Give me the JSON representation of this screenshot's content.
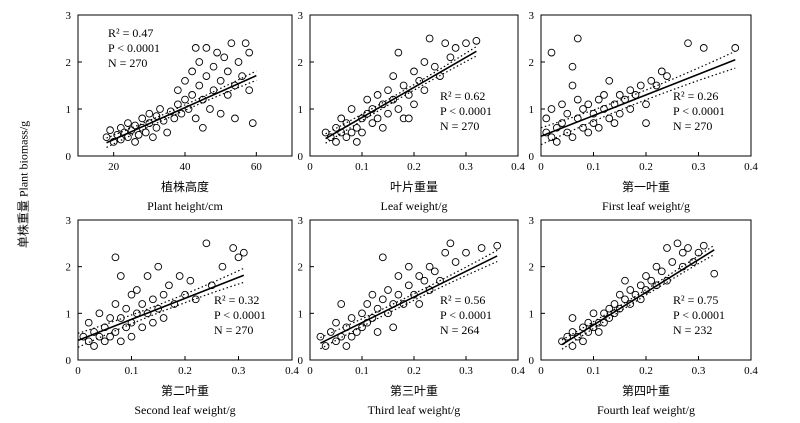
{
  "figure": {
    "ylabel": "单株重量 Plant biomass/g"
  },
  "chart_data": [
    {
      "type": "scatter",
      "panel": "a",
      "xlabel_cn": "植株高度",
      "xlabel_en": "Plant height/cm",
      "xlim": [
        10,
        70
      ],
      "ylim": [
        0,
        3
      ],
      "xticks": [
        20,
        40,
        60
      ],
      "xtick_labels": [
        "20",
        "40",
        "60"
      ],
      "yticks": [
        0,
        1,
        2,
        3
      ],
      "ytick_labels": [
        "0",
        "1",
        "2",
        "3"
      ],
      "stats": [
        "R² = 0.47",
        "P < 0.0001",
        "N = 270"
      ],
      "stats_position": "top-left",
      "fit": {
        "slope": 0.034,
        "intercept": -0.33,
        "x_range": [
          18,
          60
        ],
        "ci": 0.1
      },
      "points": [
        [
          18,
          0.4
        ],
        [
          19,
          0.55
        ],
        [
          20,
          0.3
        ],
        [
          21,
          0.45
        ],
        [
          22,
          0.6
        ],
        [
          22,
          0.35
        ],
        [
          23,
          0.5
        ],
        [
          24,
          0.7
        ],
        [
          24,
          0.4
        ],
        [
          25,
          0.55
        ],
        [
          26,
          0.65
        ],
        [
          26,
          0.3
        ],
        [
          27,
          0.45
        ],
        [
          28,
          0.8
        ],
        [
          28,
          0.6
        ],
        [
          29,
          0.5
        ],
        [
          30,
          0.9
        ],
        [
          30,
          0.7
        ],
        [
          31,
          0.4
        ],
        [
          32,
          0.85
        ],
        [
          32,
          0.6
        ],
        [
          33,
          1.0
        ],
        [
          34,
          0.75
        ],
        [
          35,
          0.5
        ],
        [
          36,
          0.95
        ],
        [
          37,
          0.8
        ],
        [
          38,
          1.1
        ],
        [
          38,
          1.4
        ],
        [
          39,
          0.9
        ],
        [
          40,
          1.2
        ],
        [
          40,
          1.6
        ],
        [
          41,
          1.0
        ],
        [
          42,
          1.3
        ],
        [
          42,
          1.8
        ],
        [
          43,
          0.8
        ],
        [
          44,
          1.5
        ],
        [
          44,
          2.0
        ],
        [
          45,
          1.2
        ],
        [
          46,
          1.7
        ],
        [
          46,
          2.3
        ],
        [
          47,
          1.0
        ],
        [
          48,
          1.4
        ],
        [
          48,
          1.9
        ],
        [
          49,
          2.2
        ],
        [
          50,
          1.6
        ],
        [
          50,
          0.9
        ],
        [
          51,
          2.1
        ],
        [
          52,
          1.3
        ],
        [
          52,
          1.8
        ],
        [
          53,
          2.4
        ],
        [
          54,
          1.5
        ],
        [
          54,
          0.8
        ],
        [
          55,
          2.0
        ],
        [
          56,
          1.7
        ],
        [
          57,
          2.4
        ],
        [
          58,
          1.4
        ],
        [
          59,
          0.7
        ],
        [
          58,
          2.2
        ],
        [
          45,
          0.6
        ],
        [
          43,
          2.3
        ]
      ]
    },
    {
      "type": "scatter",
      "panel": "b",
      "xlabel_cn": "叶片重量",
      "xlabel_en": "Leaf weight/g",
      "xlim": [
        0,
        0.4
      ],
      "ylim": [
        0,
        3
      ],
      "xticks": [
        0,
        0.1,
        0.2,
        0.3,
        0.4
      ],
      "xtick_labels": [
        "0",
        "0.1",
        "0.2",
        "0.3",
        "0.4"
      ],
      "yticks": [
        0,
        1,
        2,
        3
      ],
      "ytick_labels": [
        "0",
        "1",
        "2",
        "3"
      ],
      "stats": [
        "R² = 0.62",
        "P < 0.0001",
        "N = 270"
      ],
      "stats_position": "right",
      "fit": {
        "slope": 6.4,
        "intercept": 0.18,
        "x_range": [
          0.03,
          0.32
        ],
        "ci": 0.1
      },
      "points": [
        [
          0.03,
          0.5
        ],
        [
          0.04,
          0.4
        ],
        [
          0.05,
          0.6
        ],
        [
          0.05,
          0.3
        ],
        [
          0.06,
          0.5
        ],
        [
          0.06,
          0.8
        ],
        [
          0.07,
          0.4
        ],
        [
          0.07,
          0.7
        ],
        [
          0.08,
          0.5
        ],
        [
          0.08,
          1.0
        ],
        [
          0.09,
          0.6
        ],
        [
          0.09,
          0.3
        ],
        [
          0.1,
          0.8
        ],
        [
          0.1,
          0.5
        ],
        [
          0.11,
          0.9
        ],
        [
          0.11,
          1.2
        ],
        [
          0.12,
          0.7
        ],
        [
          0.12,
          1.0
        ],
        [
          0.13,
          0.8
        ],
        [
          0.13,
          1.3
        ],
        [
          0.14,
          1.1
        ],
        [
          0.14,
          0.6
        ],
        [
          0.15,
          1.4
        ],
        [
          0.15,
          0.9
        ],
        [
          0.16,
          1.2
        ],
        [
          0.16,
          1.7
        ],
        [
          0.17,
          1.0
        ],
        [
          0.17,
          2.2
        ],
        [
          0.18,
          1.5
        ],
        [
          0.18,
          0.8
        ],
        [
          0.19,
          1.3
        ],
        [
          0.2,
          1.8
        ],
        [
          0.2,
          1.1
        ],
        [
          0.21,
          1.6
        ],
        [
          0.22,
          2.0
        ],
        [
          0.22,
          1.4
        ],
        [
          0.23,
          2.5
        ],
        [
          0.24,
          1.9
        ],
        [
          0.25,
          1.7
        ],
        [
          0.26,
          2.4
        ],
        [
          0.27,
          2.1
        ],
        [
          0.28,
          2.3
        ],
        [
          0.3,
          2.4
        ],
        [
          0.32,
          2.45
        ],
        [
          0.19,
          0.8
        ]
      ]
    },
    {
      "type": "scatter",
      "panel": "c",
      "xlabel_cn": "第一叶重",
      "xlabel_en": "First leaf weight/g",
      "xlim": [
        0,
        0.4
      ],
      "ylim": [
        0,
        3
      ],
      "xticks": [
        0,
        0.1,
        0.2,
        0.3,
        0.4
      ],
      "xtick_labels": [
        "0",
        "0.1",
        "0.2",
        "0.3",
        "0.4"
      ],
      "yticks": [
        0,
        1,
        2,
        3
      ],
      "ytick_labels": [
        "0",
        "1",
        "2",
        "3"
      ],
      "stats": [
        "R² = 0.26",
        "P < 0.0001",
        "N = 270"
      ],
      "stats_position": "right",
      "fit": {
        "slope": 4.4,
        "intercept": 0.42,
        "x_range": [
          0.0,
          0.37
        ],
        "ci": 0.18
      },
      "points": [
        [
          0.01,
          0.5
        ],
        [
          0.01,
          0.8
        ],
        [
          0.02,
          0.4
        ],
        [
          0.02,
          1.0
        ],
        [
          0.03,
          0.6
        ],
        [
          0.03,
          0.3
        ],
        [
          0.04,
          0.7
        ],
        [
          0.04,
          1.1
        ],
        [
          0.05,
          0.5
        ],
        [
          0.05,
          0.9
        ],
        [
          0.06,
          1.5
        ],
        [
          0.06,
          1.9
        ],
        [
          0.06,
          0.4
        ],
        [
          0.07,
          2.5
        ],
        [
          0.07,
          0.8
        ],
        [
          0.07,
          1.2
        ],
        [
          0.08,
          0.6
        ],
        [
          0.08,
          1.0
        ],
        [
          0.09,
          0.5
        ],
        [
          0.09,
          1.1
        ],
        [
          0.1,
          0.7
        ],
        [
          0.1,
          0.9
        ],
        [
          0.11,
          1.2
        ],
        [
          0.11,
          0.6
        ],
        [
          0.12,
          1.0
        ],
        [
          0.12,
          1.3
        ],
        [
          0.13,
          0.8
        ],
        [
          0.13,
          1.6
        ],
        [
          0.14,
          1.1
        ],
        [
          0.14,
          0.7
        ],
        [
          0.15,
          1.3
        ],
        [
          0.15,
          0.9
        ],
        [
          0.16,
          1.2
        ],
        [
          0.17,
          1.0
        ],
        [
          0.17,
          1.4
        ],
        [
          0.18,
          1.3
        ],
        [
          0.19,
          1.5
        ],
        [
          0.2,
          1.1
        ],
        [
          0.2,
          0.7
        ],
        [
          0.21,
          1.6
        ],
        [
          0.22,
          1.5
        ],
        [
          0.23,
          1.8
        ],
        [
          0.24,
          1.7
        ],
        [
          0.28,
          2.4
        ],
        [
          0.31,
          2.3
        ],
        [
          0.37,
          2.3
        ],
        [
          0.02,
          2.2
        ]
      ]
    },
    {
      "type": "scatter",
      "panel": "d",
      "xlabel_cn": "第二叶重",
      "xlabel_en": "Second leaf weight/g",
      "xlim": [
        0,
        0.4
      ],
      "ylim": [
        0,
        3
      ],
      "xticks": [
        0,
        0.1,
        0.2,
        0.3,
        0.4
      ],
      "xtick_labels": [
        "0",
        "0.1",
        "0.2",
        "0.3",
        "0.4"
      ],
      "yticks": [
        0,
        1,
        2,
        3
      ],
      "ytick_labels": [
        "0",
        "1",
        "2",
        "3"
      ],
      "stats": [
        "R² = 0.32",
        "P < 0.0001",
        "N = 270"
      ],
      "stats_position": "right",
      "fit": {
        "slope": 4.5,
        "intercept": 0.42,
        "x_range": [
          0.0,
          0.31
        ],
        "ci": 0.15
      },
      "points": [
        [
          0.01,
          0.5
        ],
        [
          0.02,
          0.4
        ],
        [
          0.02,
          0.8
        ],
        [
          0.03,
          0.3
        ],
        [
          0.03,
          0.6
        ],
        [
          0.04,
          0.5
        ],
        [
          0.04,
          1.0
        ],
        [
          0.05,
          0.7
        ],
        [
          0.05,
          0.4
        ],
        [
          0.06,
          0.9
        ],
        [
          0.06,
          0.5
        ],
        [
          0.07,
          2.2
        ],
        [
          0.07,
          1.2
        ],
        [
          0.07,
          0.6
        ],
        [
          0.08,
          1.8
        ],
        [
          0.08,
          0.9
        ],
        [
          0.08,
          0.4
        ],
        [
          0.09,
          1.1
        ],
        [
          0.09,
          0.7
        ],
        [
          0.1,
          1.4
        ],
        [
          0.1,
          0.8
        ],
        [
          0.1,
          0.5
        ],
        [
          0.11,
          1.5
        ],
        [
          0.11,
          1.0
        ],
        [
          0.12,
          1.2
        ],
        [
          0.12,
          0.7
        ],
        [
          0.13,
          1.8
        ],
        [
          0.13,
          1.0
        ],
        [
          0.14,
          1.3
        ],
        [
          0.14,
          0.8
        ],
        [
          0.15,
          2.0
        ],
        [
          0.15,
          1.1
        ],
        [
          0.16,
          1.4
        ],
        [
          0.16,
          0.9
        ],
        [
          0.17,
          1.6
        ],
        [
          0.18,
          1.2
        ],
        [
          0.19,
          1.8
        ],
        [
          0.2,
          1.4
        ],
        [
          0.21,
          1.7
        ],
        [
          0.22,
          1.3
        ],
        [
          0.24,
          2.5
        ],
        [
          0.25,
          1.6
        ],
        [
          0.27,
          2.0
        ],
        [
          0.29,
          2.4
        ],
        [
          0.3,
          2.2
        ],
        [
          0.31,
          2.3
        ]
      ]
    },
    {
      "type": "scatter",
      "panel": "e",
      "xlabel_cn": "第三叶重",
      "xlabel_en": "Third leaf weight/g",
      "xlim": [
        0,
        0.4
      ],
      "ylim": [
        0,
        3
      ],
      "xticks": [
        0,
        0.1,
        0.2,
        0.3,
        0.4
      ],
      "xtick_labels": [
        "0",
        "0.1",
        "0.2",
        "0.3",
        "0.4"
      ],
      "yticks": [
        0,
        1,
        2,
        3
      ],
      "ytick_labels": [
        "0",
        "1",
        "2",
        "3"
      ],
      "stats": [
        "R² = 0.56",
        "P < 0.0001",
        "N = 264"
      ],
      "stats_position": "right",
      "fit": {
        "slope": 5.5,
        "intercept": 0.25,
        "x_range": [
          0.02,
          0.36
        ],
        "ci": 0.12
      },
      "points": [
        [
          0.02,
          0.5
        ],
        [
          0.03,
          0.3
        ],
        [
          0.04,
          0.6
        ],
        [
          0.05,
          0.4
        ],
        [
          0.05,
          0.8
        ],
        [
          0.06,
          0.5
        ],
        [
          0.07,
          0.7
        ],
        [
          0.07,
          0.3
        ],
        [
          0.08,
          0.9
        ],
        [
          0.08,
          0.5
        ],
        [
          0.09,
          0.6
        ],
        [
          0.1,
          1.0
        ],
        [
          0.1,
          0.7
        ],
        [
          0.11,
          1.2
        ],
        [
          0.11,
          0.8
        ],
        [
          0.12,
          0.9
        ],
        [
          0.12,
          1.4
        ],
        [
          0.13,
          1.1
        ],
        [
          0.13,
          0.6
        ],
        [
          0.14,
          1.3
        ],
        [
          0.14,
          2.2
        ],
        [
          0.15,
          1.0
        ],
        [
          0.15,
          1.5
        ],
        [
          0.16,
          1.2
        ],
        [
          0.16,
          0.7
        ],
        [
          0.17,
          1.4
        ],
        [
          0.17,
          1.8
        ],
        [
          0.18,
          1.2
        ],
        [
          0.19,
          1.6
        ],
        [
          0.19,
          2.0
        ],
        [
          0.2,
          1.4
        ],
        [
          0.21,
          1.8
        ],
        [
          0.21,
          1.2
        ],
        [
          0.22,
          1.7
        ],
        [
          0.23,
          2.0
        ],
        [
          0.23,
          1.5
        ],
        [
          0.24,
          1.9
        ],
        [
          0.25,
          1.7
        ],
        [
          0.26,
          2.3
        ],
        [
          0.27,
          2.5
        ],
        [
          0.28,
          2.1
        ],
        [
          0.3,
          2.3
        ],
        [
          0.33,
          2.4
        ],
        [
          0.36,
          2.45
        ],
        [
          0.06,
          1.2
        ]
      ]
    },
    {
      "type": "scatter",
      "panel": "f",
      "xlabel_cn": "第四叶重",
      "xlabel_en": "Fourth leaf weight/g",
      "xlim": [
        0,
        0.4
      ],
      "ylim": [
        0,
        3
      ],
      "xticks": [
        0,
        0.1,
        0.2,
        0.3,
        0.4
      ],
      "xtick_labels": [
        "0",
        "0.1",
        "0.2",
        "0.3",
        "0.4"
      ],
      "yticks": [
        0,
        1,
        2,
        3
      ],
      "ytick_labels": [
        "0",
        "1",
        "2",
        "3"
      ],
      "stats": [
        "R² = 0.75",
        "P < 0.0001",
        "N = 232"
      ],
      "stats_position": "right",
      "fit": {
        "slope": 7.0,
        "intercept": 0.05,
        "x_range": [
          0.04,
          0.33
        ],
        "ci": 0.1
      },
      "points": [
        [
          0.04,
          0.4
        ],
        [
          0.05,
          0.5
        ],
        [
          0.06,
          0.3
        ],
        [
          0.06,
          0.6
        ],
        [
          0.07,
          0.5
        ],
        [
          0.08,
          0.7
        ],
        [
          0.08,
          0.4
        ],
        [
          0.09,
          0.8
        ],
        [
          0.09,
          0.6
        ],
        [
          0.1,
          0.7
        ],
        [
          0.1,
          1.0
        ],
        [
          0.11,
          0.8
        ],
        [
          0.11,
          0.6
        ],
        [
          0.12,
          1.0
        ],
        [
          0.12,
          0.8
        ],
        [
          0.13,
          1.1
        ],
        [
          0.13,
          0.9
        ],
        [
          0.14,
          1.2
        ],
        [
          0.14,
          1.0
        ],
        [
          0.15,
          1.4
        ],
        [
          0.15,
          1.1
        ],
        [
          0.16,
          1.3
        ],
        [
          0.16,
          1.7
        ],
        [
          0.17,
          1.2
        ],
        [
          0.17,
          1.5
        ],
        [
          0.18,
          1.4
        ],
        [
          0.19,
          1.6
        ],
        [
          0.19,
          1.3
        ],
        [
          0.2,
          1.8
        ],
        [
          0.2,
          1.5
        ],
        [
          0.21,
          1.7
        ],
        [
          0.22,
          2.0
        ],
        [
          0.22,
          1.6
        ],
        [
          0.23,
          1.9
        ],
        [
          0.24,
          2.4
        ],
        [
          0.24,
          1.7
        ],
        [
          0.25,
          2.1
        ],
        [
          0.26,
          2.5
        ],
        [
          0.27,
          2.0
        ],
        [
          0.27,
          2.3
        ],
        [
          0.28,
          2.4
        ],
        [
          0.29,
          2.1
        ],
        [
          0.3,
          2.3
        ],
        [
          0.31,
          2.45
        ],
        [
          0.33,
          1.85
        ],
        [
          0.06,
          0.9
        ]
      ]
    }
  ]
}
